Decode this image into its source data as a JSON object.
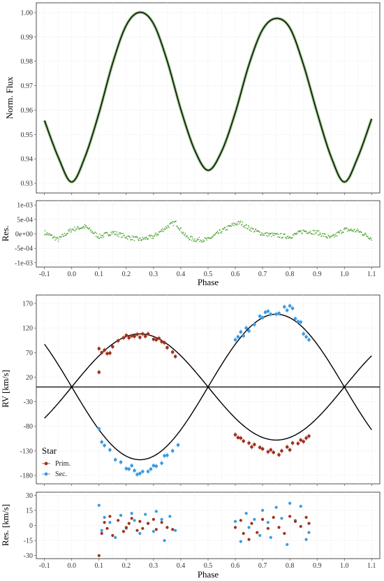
{
  "chart_data": [
    {
      "id": "lc",
      "type": "line",
      "ylabel": "Norm. Flux",
      "xlabel": "",
      "xlim": [
        -0.13,
        1.13
      ],
      "ylim": [
        0.926,
        1.004
      ],
      "x_ticks": [
        -0.1,
        0.0,
        0.1,
        0.2,
        0.3,
        0.4,
        0.5,
        0.6,
        0.7,
        0.8,
        0.9,
        1.0,
        1.1
      ],
      "y_ticks": [
        0.93,
        0.94,
        0.95,
        0.96,
        0.97,
        0.98,
        0.99,
        1.0
      ],
      "y_tick_labels": [
        "0.93",
        "0.94",
        "0.95",
        "0.96",
        "0.97",
        "0.98",
        "0.99",
        "1.00"
      ],
      "grid": true,
      "model": {
        "x": [
          -0.1,
          -0.05,
          0.0,
          0.05,
          0.1,
          0.15,
          0.2,
          0.25,
          0.3,
          0.35,
          0.4,
          0.45,
          0.5,
          0.55,
          0.6,
          0.65,
          0.7,
          0.75,
          0.8,
          0.85,
          0.9,
          0.95,
          1.0,
          1.05,
          1.1
        ],
        "y": [
          0.9557,
          0.9408,
          0.9305,
          0.9412,
          0.9588,
          0.9792,
          0.9948,
          1.0001,
          0.9954,
          0.9802,
          0.9603,
          0.9438,
          0.9353,
          0.9431,
          0.959,
          0.9786,
          0.993,
          0.9976,
          0.9937,
          0.9786,
          0.959,
          0.9412,
          0.9305,
          0.9408,
          0.9564
        ],
        "color": "#111111"
      },
      "observed_color": "#4aa02c"
    },
    {
      "id": "lcres",
      "type": "scatter",
      "ylabel": "Res.",
      "xlabel": "Phase",
      "xlim": [
        -0.13,
        1.13
      ],
      "ylim": [
        -0.00115,
        0.00115
      ],
      "x_ticks": [
        -0.1,
        0.0,
        0.1,
        0.2,
        0.3,
        0.4,
        0.5,
        0.6,
        0.7,
        0.8,
        0.9,
        1.0,
        1.1
      ],
      "x_tick_labels": [
        "-0.1",
        "0.0",
        "0.1",
        "0.2",
        "0.3",
        "0.4",
        "0.5",
        "0.6",
        "0.7",
        "0.8",
        "0.9",
        "1.0",
        "1.1"
      ],
      "y_ticks": [
        -0.001,
        -0.0005,
        0.0,
        0.0005,
        0.001
      ],
      "y_tick_labels": [
        "-1e-03",
        "-5e-04",
        "0e+00",
        "5e-04",
        "1e-03"
      ],
      "grid": true,
      "trend": {
        "x": [
          -0.1,
          -0.05,
          0.0,
          0.05,
          0.1,
          0.15,
          0.2,
          0.25,
          0.3,
          0.35,
          0.38,
          0.42,
          0.45,
          0.5,
          0.55,
          0.6,
          0.62,
          0.65,
          0.7,
          0.75,
          0.8,
          0.85,
          0.9,
          0.95,
          1.0,
          1.05,
          1.1
        ],
        "y": [
          5e-05,
          -0.0002,
          0.00015,
          0.00025,
          -0.0001,
          5e-05,
          -0.0001,
          -0.0002,
          -0.0001,
          0.00025,
          0.0004,
          -0.0001,
          -0.0002,
          -0.0002,
          0.0001,
          0.00035,
          0.00038,
          0.0002,
          0.0,
          -5e-05,
          -0.0001,
          0.0001,
          5e-05,
          -0.00015,
          0.00015,
          0.0001,
          -0.00015
        ]
      },
      "color": "#4aa02c"
    },
    {
      "id": "rv",
      "type": "scatter",
      "ylabel": "RV [km/s]",
      "xlabel": "",
      "xlim": [
        -0.13,
        1.13
      ],
      "ylim": [
        -197,
        187
      ],
      "x_ticks": [
        -0.1,
        0.0,
        0.1,
        0.2,
        0.3,
        0.4,
        0.5,
        0.6,
        0.7,
        0.8,
        0.9,
        1.0,
        1.1
      ],
      "y_ticks": [
        -180,
        -130,
        -80,
        -30,
        20,
        70,
        120,
        170
      ],
      "y_tick_labels": [
        "-180",
        "-130",
        "-80",
        "-30",
        "20",
        "70",
        "120",
        "170"
      ],
      "grid": true,
      "systemic_velocity": 0,
      "K_primary": 108,
      "K_secondary": 148,
      "legend": {
        "title": "Star",
        "placement": "bottom-left",
        "entries": [
          {
            "label": "Prim.",
            "color": "#a0321e"
          },
          {
            "label": "Sec.",
            "color": "#3d9ae0"
          }
        ]
      },
      "primary_points": {
        "x": [
          0.1,
          0.1,
          0.11,
          0.12,
          0.13,
          0.14,
          0.15,
          0.17,
          0.19,
          0.2,
          0.21,
          0.22,
          0.23,
          0.24,
          0.25,
          0.26,
          0.27,
          0.28,
          0.3,
          0.31,
          0.32,
          0.33,
          0.34,
          0.35,
          0.37,
          0.38,
          0.6,
          0.61,
          0.62,
          0.63,
          0.65,
          0.66,
          0.67,
          0.69,
          0.7,
          0.72,
          0.73,
          0.74,
          0.76,
          0.77,
          0.79,
          0.8,
          0.81,
          0.83,
          0.84,
          0.85,
          0.86,
          0.87
        ],
        "y": [
          30,
          78,
          70,
          75,
          68,
          69,
          82,
          94,
          100,
          105,
          100,
          104,
          103,
          107,
          101,
          108,
          103,
          108,
          97,
          96,
          99,
          92,
          90,
          80,
          71,
          62,
          -97,
          -103,
          -104,
          -110,
          -114,
          -122,
          -117,
          -123,
          -126,
          -132,
          -128,
          -133,
          -138,
          -130,
          -122,
          -128,
          -114,
          -115,
          -108,
          -111,
          -104,
          -100
        ]
      },
      "secondary_points": {
        "x": [
          0.1,
          0.11,
          0.12,
          0.14,
          0.16,
          0.18,
          0.2,
          0.21,
          0.22,
          0.23,
          0.24,
          0.25,
          0.26,
          0.28,
          0.29,
          0.3,
          0.31,
          0.33,
          0.34,
          0.35,
          0.37,
          0.39,
          0.6,
          0.61,
          0.62,
          0.63,
          0.64,
          0.65,
          0.67,
          0.69,
          0.7,
          0.71,
          0.72,
          0.73,
          0.75,
          0.76,
          0.78,
          0.79,
          0.8,
          0.81,
          0.82,
          0.83,
          0.84,
          0.85,
          0.86,
          0.87
        ],
        "y": [
          -85,
          -112,
          -119,
          -128,
          -148,
          -153,
          -166,
          -167,
          -160,
          -170,
          -178,
          -176,
          -172,
          -172,
          -167,
          -160,
          -161,
          -155,
          -140,
          -139,
          -130,
          -118,
          96,
          102,
          112,
          104,
          120,
          114,
          127,
          144,
          141,
          152,
          154,
          148,
          148,
          150,
          163,
          156,
          165,
          160,
          139,
          133,
          132,
          108,
          102,
          96
        ]
      }
    },
    {
      "id": "rvres",
      "type": "scatter",
      "ylabel": "Res. [km/s]",
      "xlabel": "Phase",
      "xlim": [
        -0.13,
        1.13
      ],
      "ylim": [
        -33,
        33
      ],
      "x_ticks": [
        -0.1,
        0.0,
        0.1,
        0.2,
        0.3,
        0.4,
        0.5,
        0.6,
        0.7,
        0.8,
        0.9,
        1.0,
        1.1
      ],
      "x_tick_labels": [
        "-0.1",
        "0.0",
        "0.1",
        "0.2",
        "0.3",
        "0.4",
        "0.5",
        "0.6",
        "0.7",
        "0.8",
        "0.9",
        "1.0",
        "1.1"
      ],
      "y_ticks": [
        -30,
        -15,
        0,
        15,
        30
      ],
      "y_tick_labels": [
        "-30",
        "-15",
        "0",
        "15",
        "30"
      ],
      "grid": true,
      "primary_points": {
        "x": [
          0.1,
          0.11,
          0.12,
          0.13,
          0.14,
          0.15,
          0.17,
          0.19,
          0.2,
          0.21,
          0.22,
          0.24,
          0.25,
          0.26,
          0.28,
          0.3,
          0.31,
          0.33,
          0.35,
          0.37,
          0.6,
          0.62,
          0.63,
          0.65,
          0.66,
          0.68,
          0.7,
          0.72,
          0.74,
          0.76,
          0.78,
          0.8,
          0.82,
          0.84,
          0.86,
          0.87
        ],
        "y": [
          -30,
          -8,
          3,
          -3,
          9,
          -10,
          5,
          -6,
          -2,
          2,
          7,
          -5,
          4,
          -3,
          2,
          6,
          -4,
          3,
          -2,
          -4,
          -2,
          5,
          -8,
          -14,
          2,
          -7,
          6,
          -3,
          8,
          -2,
          -8,
          9,
          4,
          -1,
          8,
          2
        ]
      },
      "secondary_points": {
        "x": [
          0.1,
          0.11,
          0.12,
          0.14,
          0.16,
          0.18,
          0.2,
          0.22,
          0.23,
          0.25,
          0.27,
          0.28,
          0.3,
          0.31,
          0.33,
          0.34,
          0.36,
          0.38,
          0.6,
          0.62,
          0.64,
          0.65,
          0.67,
          0.69,
          0.7,
          0.72,
          0.73,
          0.75,
          0.77,
          0.79,
          0.8,
          0.82,
          0.84,
          0.86,
          0.87
        ],
        "y": [
          20,
          -5,
          8,
          3,
          -12,
          10,
          -3,
          12,
          5,
          -8,
          11,
          2,
          -6,
          14,
          6,
          -15,
          9,
          -5,
          4,
          -16,
          12,
          -2,
          6,
          -10,
          15,
          3,
          -12,
          18,
          7,
          -19,
          22,
          5,
          19,
          -14,
          -7
        ]
      }
    }
  ]
}
